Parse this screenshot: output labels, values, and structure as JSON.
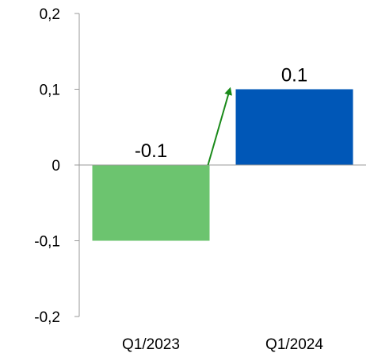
{
  "chart_data": {
    "type": "bar",
    "categories": [
      "Q1/2023",
      "Q1/2024"
    ],
    "values": [
      -0.1,
      0.1
    ],
    "data_labels": [
      "-0.1",
      "0.1"
    ],
    "bar_colors": [
      "#6cc46f",
      "#0057b7"
    ],
    "y_ticks": [
      0.2,
      0.1,
      0,
      -0.1,
      -0.2
    ],
    "y_tick_labels": [
      "0,2",
      "0,1",
      "0",
      "-0,1",
      "-0,2"
    ],
    "ylim": [
      -0.2,
      0.2
    ],
    "grid": false,
    "legend": "none",
    "title": "",
    "xlabel": "",
    "ylabel": "",
    "annotation": {
      "type": "arrow",
      "from": "Q1/2023",
      "to": "Q1/2024",
      "color": "#1a8a1a"
    }
  }
}
